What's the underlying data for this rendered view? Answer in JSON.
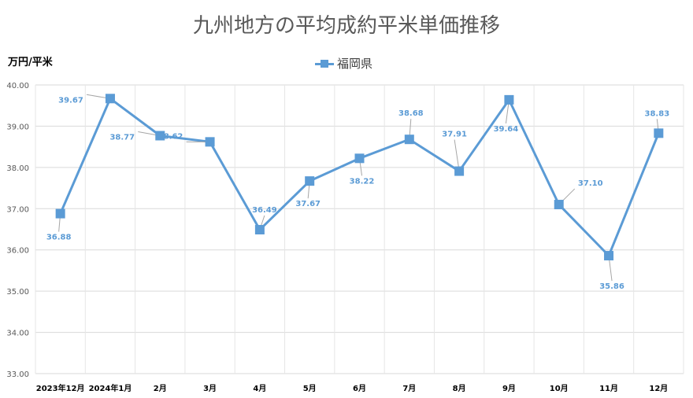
{
  "chart_data": {
    "type": "line",
    "title": "九州地方の平均成約平米単価推移",
    "ylabel": "万円/平米",
    "ylim": [
      33,
      40
    ],
    "yticks": [
      "33.00",
      "34.00",
      "35.00",
      "36.00",
      "37.00",
      "38.00",
      "39.00",
      "40.00"
    ],
    "grid": true,
    "legend_position": "top-center",
    "categories": [
      "2023年12月",
      "2024年1月",
      "2月",
      "3月",
      "4月",
      "5月",
      "6月",
      "7月",
      "8月",
      "9月",
      "10月",
      "11月",
      "12月"
    ],
    "series": [
      {
        "name": "福岡県",
        "color": "#5b9bd5",
        "values": [
          36.88,
          39.67,
          38.77,
          38.62,
          36.49,
          37.67,
          38.22,
          38.68,
          37.91,
          39.64,
          37.1,
          35.86,
          38.83
        ],
        "labels": [
          "36.88",
          "39.67",
          "38.77",
          "38.62",
          "36.49",
          "37.67",
          "38.22",
          "38.68",
          "37.91",
          "39.64",
          "37.10",
          "35.86",
          "38.83"
        ]
      }
    ]
  }
}
